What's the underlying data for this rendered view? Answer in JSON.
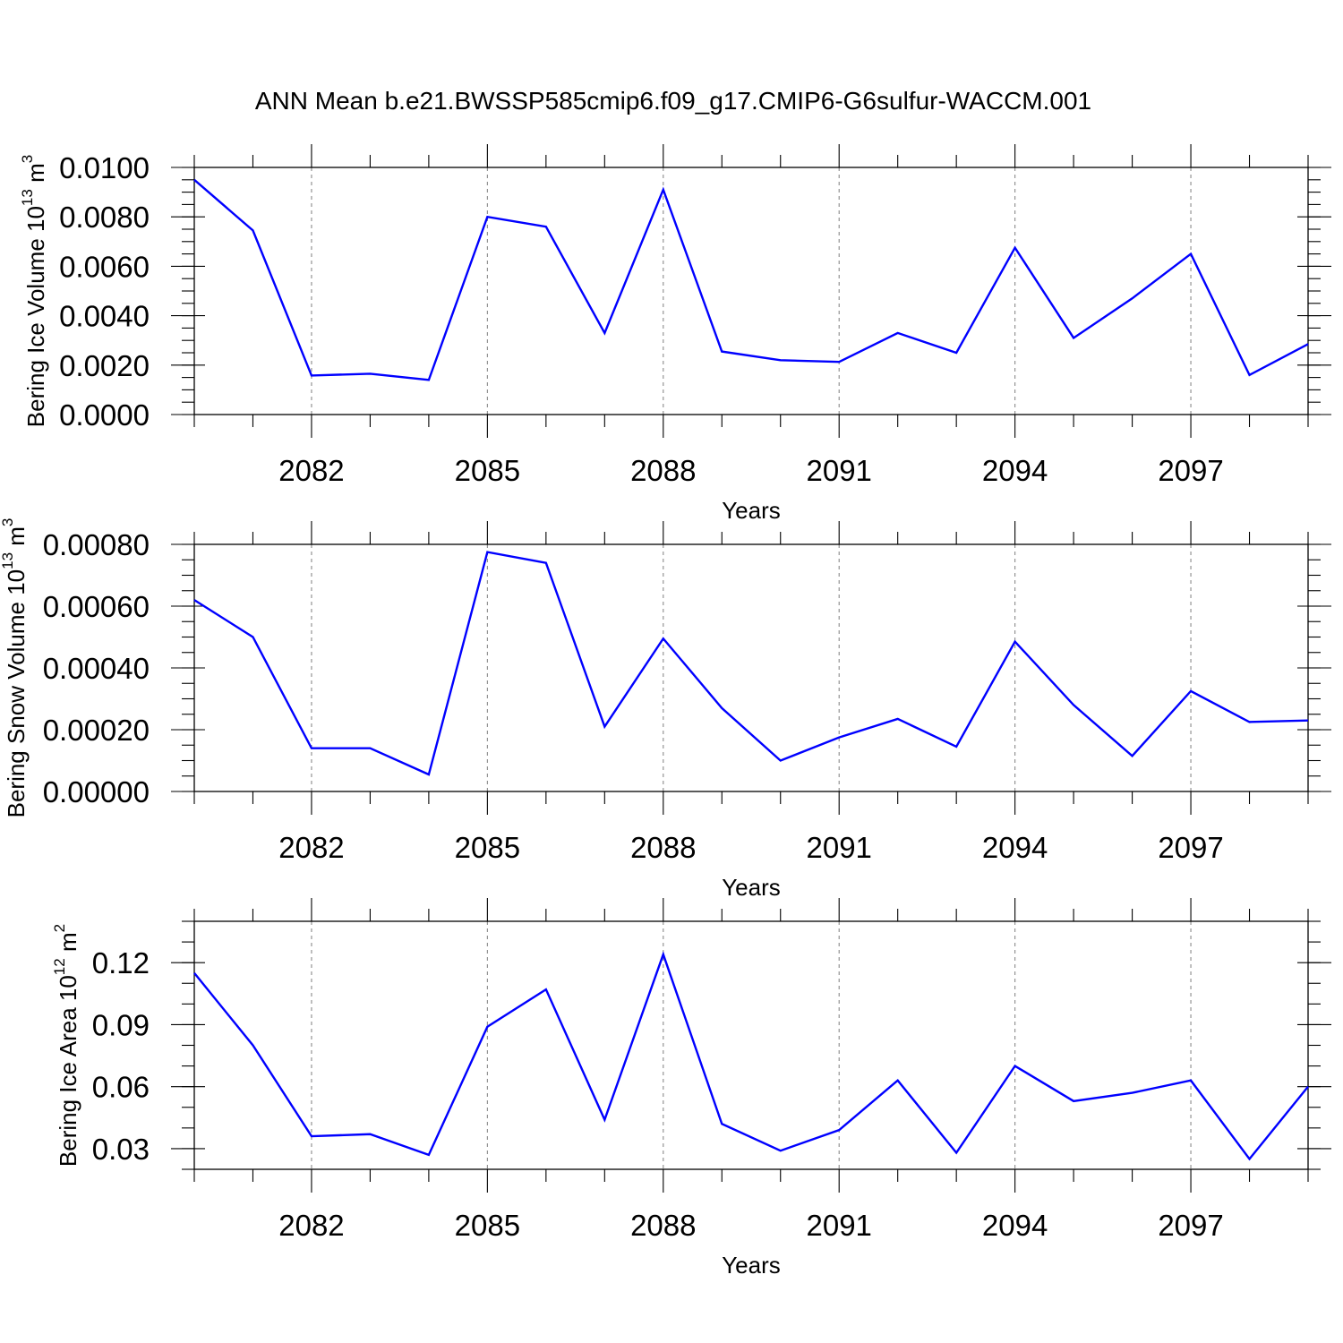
{
  "figure": {
    "title": "ANN Mean b.e21.BWSSP585cmip6.f09_g17.CMIP6-G6sulfur-WACCM.001"
  },
  "colors": {
    "series": "#0000ff",
    "grid": "#8a8a8a",
    "axes": "#000000",
    "background": "#ffffff"
  },
  "chart_data": [
    {
      "type": "line",
      "ylabel": {
        "text": "Bering Ice Volume 10",
        "exp": "13",
        "unit": " m",
        "unit_exp": "3"
      },
      "xlabel": "Years",
      "xlim": [
        2080,
        2099
      ],
      "ylim": [
        0,
        0.01
      ],
      "x_major_ticks": [
        2082,
        2085,
        2088,
        2091,
        2094,
        2097
      ],
      "x_tick_labels": [
        "2082",
        "2085",
        "2088",
        "2091",
        "2094",
        "2097"
      ],
      "y_major_ticks": [
        0,
        0.002,
        0.004,
        0.006,
        0.008,
        0.01
      ],
      "y_tick_labels": [
        "0.0000",
        "0.0020",
        "0.0040",
        "0.0060",
        "0.0080",
        "0.0100"
      ],
      "y_minor_step": 0.0005,
      "grid": "vertical dashed at major x ticks",
      "x": [
        2080,
        2081,
        2082,
        2083,
        2084,
        2085,
        2086,
        2087,
        2088,
        2089,
        2090,
        2091,
        2092,
        2093,
        2094,
        2095,
        2096,
        2097,
        2098,
        2099
      ],
      "series": [
        {
          "values": [
            0.0095,
            0.00745,
            0.00158,
            0.00165,
            0.0014,
            0.008,
            0.0076,
            0.0033,
            0.0091,
            0.00255,
            0.0022,
            0.00213,
            0.0033,
            0.0025,
            0.00675,
            0.0031,
            0.0047,
            0.0065,
            0.0016,
            0.00285
          ]
        }
      ]
    },
    {
      "type": "line",
      "ylabel": {
        "text": "Bering Snow Volume 10",
        "exp": "13",
        "unit": " m",
        "unit_exp": "3"
      },
      "xlabel": "Years",
      "xlim": [
        2080,
        2099
      ],
      "ylim": [
        0,
        0.0008
      ],
      "x_major_ticks": [
        2082,
        2085,
        2088,
        2091,
        2094,
        2097
      ],
      "x_tick_labels": [
        "2082",
        "2085",
        "2088",
        "2091",
        "2094",
        "2097"
      ],
      "y_major_ticks": [
        0,
        0.0002,
        0.0004,
        0.0006,
        0.0008
      ],
      "y_tick_labels": [
        "0.00000",
        "0.00020",
        "0.00040",
        "0.00060",
        "0.00080"
      ],
      "y_minor_step": 5e-05,
      "grid": "vertical dashed at major x ticks",
      "x": [
        2080,
        2081,
        2082,
        2083,
        2084,
        2085,
        2086,
        2087,
        2088,
        2089,
        2090,
        2091,
        2092,
        2093,
        2094,
        2095,
        2096,
        2097,
        2098,
        2099
      ],
      "series": [
        {
          "values": [
            0.00062,
            0.0005,
            0.00014,
            0.00014,
            5.5e-05,
            0.000775,
            0.00074,
            0.00021,
            0.000495,
            0.00027,
            0.0001,
            0.000175,
            0.000235,
            0.000145,
            0.000485,
            0.00028,
            0.000115,
            0.000325,
            0.000225,
            0.00023
          ]
        }
      ]
    },
    {
      "type": "line",
      "ylabel": {
        "text": "Bering Ice Area 10",
        "exp": "12",
        "unit": " m",
        "unit_exp": "2"
      },
      "xlabel": "Years",
      "xlim": [
        2080,
        2099
      ],
      "ylim": [
        0.02,
        0.14
      ],
      "x_major_ticks": [
        2082,
        2085,
        2088,
        2091,
        2094,
        2097
      ],
      "x_tick_labels": [
        "2082",
        "2085",
        "2088",
        "2091",
        "2094",
        "2097"
      ],
      "y_major_ticks": [
        0.03,
        0.06,
        0.09,
        0.12
      ],
      "y_tick_labels": [
        "0.03",
        "0.06",
        "0.09",
        "0.12"
      ],
      "y_minor_step": 0.01,
      "grid": "vertical dashed at major x ticks",
      "x": [
        2080,
        2081,
        2082,
        2083,
        2084,
        2085,
        2086,
        2087,
        2088,
        2089,
        2090,
        2091,
        2092,
        2093,
        2094,
        2095,
        2096,
        2097,
        2098,
        2099
      ],
      "series": [
        {
          "values": [
            0.115,
            0.08,
            0.036,
            0.037,
            0.027,
            0.089,
            0.107,
            0.044,
            0.124,
            0.042,
            0.029,
            0.039,
            0.063,
            0.028,
            0.07,
            0.053,
            0.057,
            0.063,
            0.025,
            0.06
          ]
        }
      ]
    }
  ]
}
